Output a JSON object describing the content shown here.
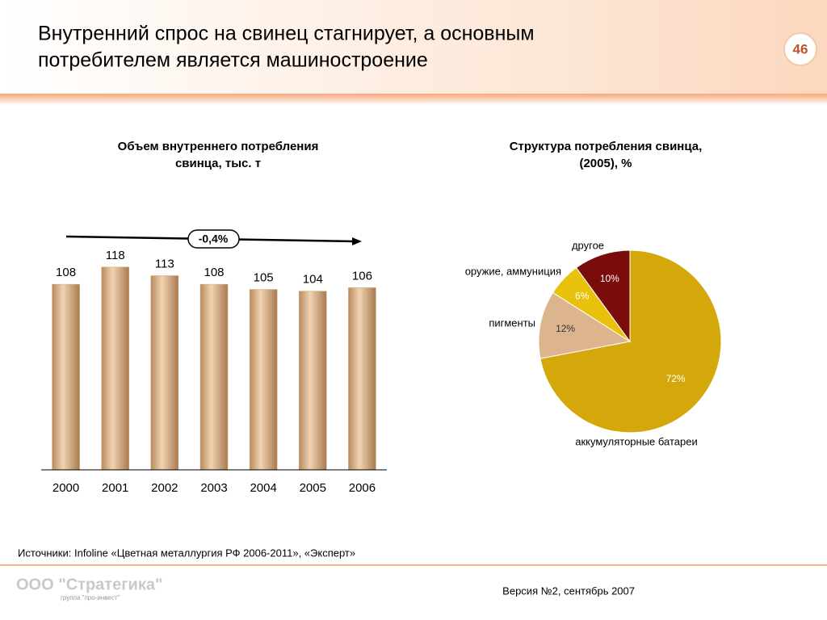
{
  "slide": {
    "title_line1": "Внутренний спрос на свинец стагнирует, а основным",
    "title_line2": "потребителем является машиностроение",
    "page_number": "46",
    "source": "Источники: Infoline «Цветная металлургия РФ 2006-2011», «Эксперт»",
    "version": "Версия №2, сентябрь 2007",
    "logo": "ООО \"Стратегика\"",
    "logo_sub": "группа \"про-инвест\""
  },
  "chart_data": [
    {
      "type": "bar",
      "title_line1": "Объем внутреннего потребления",
      "title_line2": "свинца, тыс. т",
      "categories": [
        "2000",
        "2001",
        "2002",
        "2003",
        "2004",
        "2005",
        "2006"
      ],
      "values": [
        108,
        118,
        113,
        108,
        105,
        104,
        106
      ],
      "color": "#d2a67a",
      "ylim": [
        0,
        140
      ],
      "annotation": "-0,4%"
    },
    {
      "type": "pie",
      "title_line1": "Структура потребления свинца,",
      "title_line2": "(2005), %",
      "categories": [
        "аккумуляторные батареи",
        "пигменты",
        "оружие, аммуниция",
        "другое"
      ],
      "values": [
        72,
        12,
        6,
        10
      ],
      "value_labels": [
        "72%",
        "12%",
        "6%",
        "10%"
      ],
      "colors": [
        "#d4a80a",
        "#dcb58e",
        "#e8c20a",
        "#7a0c0c"
      ]
    }
  ]
}
